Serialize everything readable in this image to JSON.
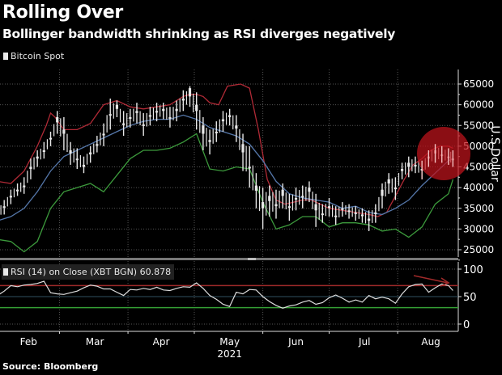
{
  "header": {
    "title": "Rolling Over",
    "subtitle": "Bollinger bandwidth shrinking as RSI diverges negatively",
    "legend_label": "Bitcoin Spot"
  },
  "footer": {
    "source": "Source: Bloomberg"
  },
  "colors": {
    "background": "#000000",
    "price": "#e8e8e8",
    "upper_band": "#b02a36",
    "middle_band": "#5577aa",
    "lower_band": "#3c9a3c",
    "rsi_line": "#dddddd",
    "rsi_overbought": "#a02a2a",
    "rsi_oversold": "#34a034",
    "rsi_mid": "#2f4f5f",
    "highlight": "#c0141c"
  },
  "chart_data": [
    {
      "type": "line",
      "title": "Bitcoin Spot",
      "ylabel": "U.S Dollar",
      "xlabel": "2021",
      "ylim": [
        22000,
        68000
      ],
      "yticks": [
        "25000",
        "30000",
        "35000",
        "40000",
        "45000",
        "50000",
        "55000",
        "60000",
        "65000"
      ],
      "ytick_values": [
        25000,
        30000,
        35000,
        40000,
        45000,
        50000,
        55000,
        60000,
        65000
      ],
      "x_month_labels": [
        "Feb",
        "Mar",
        "Apr",
        "May",
        "Jun",
        "Jul",
        "Aug"
      ],
      "x_year_label": "2021",
      "x_day_range": [
        0,
        211
      ],
      "month_start_days": [
        28,
        59,
        89,
        120,
        150,
        181
      ],
      "month_label_days": [
        14,
        44,
        74,
        105,
        135,
        166,
        196
      ],
      "grid": true,
      "series": [
        {
          "name": "Bitcoin Spot",
          "days": [
            0,
            3,
            6,
            9,
            12,
            15,
            18,
            21,
            24,
            27,
            30,
            33,
            36,
            39,
            42,
            45,
            48,
            51,
            54,
            57,
            60,
            63,
            66,
            69,
            72,
            75,
            78,
            81,
            84,
            87,
            90,
            93,
            96,
            99,
            102,
            105,
            108,
            111,
            114,
            117,
            120,
            123,
            126,
            129,
            132,
            135,
            138,
            141,
            144,
            147,
            150,
            153,
            156,
            159,
            162,
            165,
            168,
            171,
            174,
            177,
            180,
            183,
            186,
            189,
            192,
            195,
            198,
            201,
            204,
            206
          ],
          "close": [
            34000,
            35500,
            38000,
            39500,
            40500,
            45000,
            47500,
            49000,
            52000,
            57000,
            54000,
            49000,
            47000,
            45000,
            48500,
            50500,
            53000,
            57500,
            60000,
            55500,
            57000,
            58500,
            55000,
            57500,
            58500,
            59000,
            57000,
            59000,
            61500,
            64000,
            60000,
            55000,
            51500,
            53500,
            56500,
            57500,
            55000,
            50500,
            45000,
            40500,
            36500,
            38000,
            35500,
            39500,
            35500,
            37500,
            38000,
            40000,
            36000,
            33500,
            35500,
            33000,
            35000,
            34500,
            34000,
            33500,
            32500,
            34000,
            39500,
            42000,
            40000,
            44500,
            46000,
            45500,
            44500,
            47500,
            49000,
            48000,
            47500,
            47000
          ],
          "high": [
            35500,
            37000,
            39500,
            41000,
            42500,
            47000,
            49000,
            51000,
            53500,
            58500,
            57000,
            51000,
            49500,
            47500,
            50000,
            52500,
            55500,
            61500,
            61000,
            58500,
            59000,
            60500,
            58000,
            59500,
            60500,
            60500,
            59500,
            61000,
            63500,
            64500,
            63000,
            57000,
            54000,
            56000,
            58500,
            59000,
            57500,
            53000,
            50000,
            43500,
            40000,
            40500,
            39500,
            41000,
            38500,
            40000,
            40500,
            41500,
            38500,
            36000,
            37500,
            35500,
            36500,
            36000,
            35500,
            35000,
            34500,
            36000,
            41000,
            43500,
            42500,
            46000,
            47500,
            47500,
            46500,
            49000,
            50500,
            50000,
            49500,
            49000
          ],
          "low": [
            32000,
            33500,
            36000,
            38000,
            38500,
            42000,
            45000,
            47000,
            50000,
            53000,
            49000,
            45500,
            44500,
            43500,
            46000,
            48500,
            50000,
            54000,
            57000,
            52500,
            54500,
            55500,
            52500,
            55000,
            56000,
            56500,
            54500,
            56000,
            58500,
            59500,
            54000,
            49000,
            48000,
            51000,
            53500,
            55000,
            51000,
            44000,
            40000,
            35000,
            30000,
            33000,
            32500,
            35000,
            32000,
            34500,
            35000,
            36500,
            30500,
            31500,
            33000,
            31000,
            33000,
            32500,
            32000,
            31500,
            29500,
            31500,
            35000,
            38500,
            37000,
            42000,
            42500,
            43500,
            42000,
            45000,
            46000,
            46000,
            45500,
            45000
          ]
        },
        {
          "name": "Upper Bollinger Band",
          "days": [
            0,
            6,
            12,
            18,
            22,
            24,
            26,
            30,
            36,
            42,
            48,
            54,
            60,
            66,
            72,
            78,
            84,
            87,
            90,
            93,
            96,
            100,
            104,
            110,
            114,
            118,
            122,
            126,
            130,
            134,
            138,
            142,
            146,
            150,
            156,
            162,
            168,
            172,
            176,
            180,
            184,
            188,
            192,
            196,
            200,
            204,
            206
          ],
          "values": [
            41500,
            41000,
            44000,
            50000,
            55000,
            58000,
            57000,
            54000,
            54000,
            55500,
            60000,
            61000,
            59500,
            59000,
            59500,
            60000,
            62000,
            62500,
            62500,
            62000,
            60500,
            60000,
            64500,
            65000,
            64000,
            54000,
            42000,
            37000,
            36000,
            36500,
            37000,
            37000,
            36000,
            35000,
            34500,
            34000,
            33500,
            33000,
            34000,
            38000,
            42000,
            45500,
            47000,
            49000,
            50000,
            50000,
            49500
          ]
        },
        {
          "name": "Middle Bollinger Band",
          "days": [
            0,
            6,
            12,
            18,
            24,
            30,
            36,
            42,
            48,
            54,
            60,
            66,
            72,
            78,
            84,
            90,
            96,
            102,
            108,
            114,
            120,
            126,
            132,
            138,
            144,
            150,
            156,
            162,
            168,
            174,
            180,
            186,
            192,
            198,
            204,
            206
          ],
          "values": [
            32000,
            33000,
            35000,
            39000,
            44000,
            47500,
            49000,
            50500,
            52000,
            53500,
            55000,
            56000,
            56500,
            56500,
            57500,
            56500,
            54500,
            53500,
            52500,
            50500,
            46500,
            41500,
            38500,
            37500,
            37000,
            36500,
            35000,
            35500,
            34000,
            33500,
            35000,
            37000,
            40500,
            43500,
            46500,
            47000
          ]
        },
        {
          "name": "Lower Bollinger Band",
          "days": [
            0,
            6,
            12,
            18,
            24,
            30,
            36,
            42,
            48,
            54,
            60,
            66,
            72,
            78,
            84,
            90,
            96,
            102,
            108,
            114,
            120,
            126,
            132,
            138,
            144,
            150,
            156,
            162,
            168,
            174,
            180,
            186,
            192,
            198,
            204,
            206
          ],
          "values": [
            27500,
            27000,
            24500,
            27000,
            35000,
            39000,
            40000,
            41000,
            39000,
            43000,
            47000,
            49000,
            49000,
            49500,
            51000,
            53000,
            44500,
            44000,
            45000,
            44500,
            36500,
            30000,
            31000,
            33000,
            33000,
            30500,
            31500,
            31500,
            31000,
            29500,
            30000,
            28000,
            30500,
            36000,
            38500,
            42000
          ]
        }
      ]
    },
    {
      "type": "line",
      "title": "RSI (14) on Close (XBT BGN) 60.878",
      "ylim": [
        -12,
        112
      ],
      "yticks": [
        "0",
        "50",
        "100"
      ],
      "ytick_values": [
        0,
        50,
        100
      ],
      "overbought": 70,
      "oversold": 30,
      "midline": 50,
      "last_value": 60.878,
      "series": [
        {
          "name": "RSI (14)",
          "days": [
            0,
            3,
            6,
            9,
            12,
            15,
            18,
            21,
            24,
            27,
            30,
            33,
            36,
            39,
            42,
            45,
            48,
            51,
            54,
            57,
            60,
            63,
            66,
            69,
            72,
            75,
            78,
            81,
            84,
            87,
            90,
            93,
            96,
            99,
            102,
            105,
            108,
            111,
            114,
            117,
            120,
            123,
            126,
            129,
            132,
            135,
            138,
            141,
            144,
            147,
            150,
            153,
            156,
            159,
            162,
            165,
            168,
            171,
            174,
            177,
            180,
            183,
            186,
            189,
            192,
            195,
            198,
            201,
            204,
            206
          ],
          "values": [
            52,
            60,
            70,
            68,
            71,
            72,
            74,
            78,
            57,
            55,
            54,
            57,
            60,
            66,
            71,
            69,
            64,
            64,
            58,
            52,
            63,
            62,
            65,
            63,
            67,
            62,
            61,
            65,
            68,
            67,
            75,
            65,
            52,
            45,
            36,
            32,
            58,
            55,
            63,
            62,
            50,
            41,
            34,
            29,
            33,
            35,
            40,
            43,
            36,
            39,
            48,
            53,
            47,
            40,
            44,
            40,
            52,
            46,
            49,
            46,
            38,
            55,
            68,
            72,
            73,
            58,
            66,
            73,
            70,
            61
          ]
        }
      ]
    }
  ],
  "annotations": {
    "circle_label": "highlight-circle",
    "arrow_label": "rsi-divergence-arrow"
  }
}
